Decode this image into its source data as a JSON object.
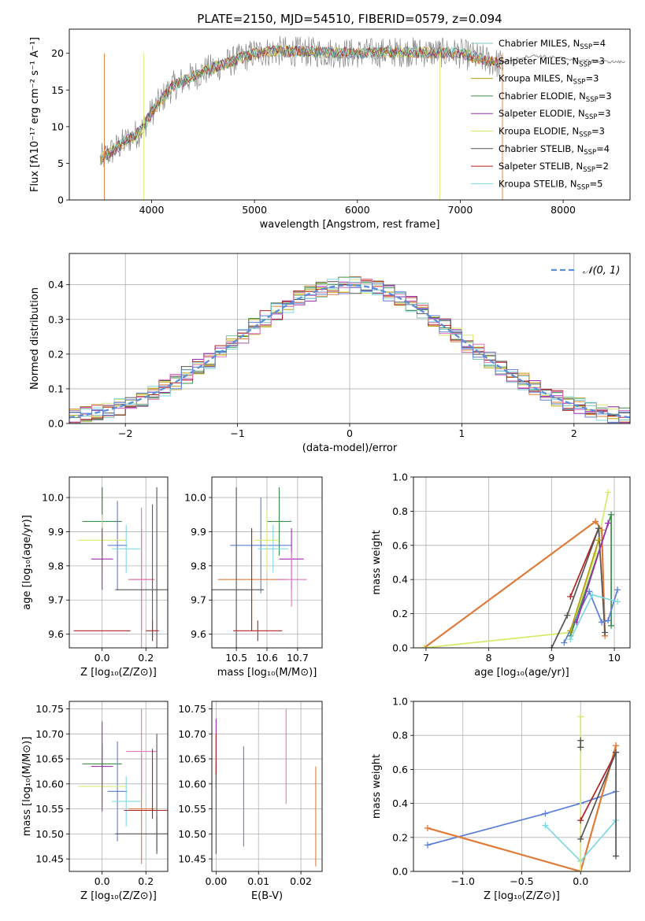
{
  "figure_title": "PLATE=2150, MJD=54510, FIBERID=0579, z=0.094",
  "colors": {
    "chabrier_miles": "#7fc6bc",
    "salpeter_miles": "#e07b39",
    "kroupa_miles": "#b8a00c",
    "chabrier_elodie": "#3e8f4c",
    "salpeter_elodie": "#9b2fae",
    "kroupa_elodie": "#d9e86a",
    "chabrier_stelib": "#555555",
    "salpeter_stelib": "#b22222",
    "kroupa_stelib": "#7fd8e0",
    "blue_model": "#5b7fd6",
    "pink_model": "#e377c2",
    "normal_curve": "#5a8fd8",
    "data": "#888888"
  },
  "chart_data": [
    {
      "id": "spectrum",
      "type": "line",
      "xlabel": "wavelength [Angstrom, rest frame]",
      "ylabel": "Flux [fλ10⁻¹⁷ erg cm⁻² s⁻¹ A⁻¹]",
      "xlim": [
        3200,
        8650
      ],
      "ylim": [
        0,
        23.3
      ],
      "xticks": [
        "4000",
        "5000",
        "6000",
        "7000",
        "8000"
      ],
      "yticks": [
        "0",
        "5",
        "10",
        "15",
        "20"
      ],
      "legend_position": "top-right",
      "continuum": {
        "x": [
          3500,
          3700,
          3900,
          4000,
          4200,
          4500,
          4800,
          5000,
          5200,
          5500,
          6000,
          6500,
          7000,
          7400
        ],
        "y": [
          5.5,
          7.5,
          9.5,
          12.0,
          15.5,
          17.5,
          19.0,
          20.0,
          20.3,
          20.2,
          20.0,
          20.2,
          20.0,
          18.5
        ]
      },
      "extended_model": {
        "x": [
          7400,
          7700,
          8000,
          8300,
          8600
        ],
        "y": [
          18.8,
          19.7,
          19.3,
          18.9,
          18.8
        ]
      },
      "series": [
        {
          "label": "Chabrier MILES, N",
          "sub": "SSP",
          "suffix": "=4"
        },
        {
          "label": "Salpeter MILES, N",
          "sub": "SSP",
          "suffix": "=3"
        },
        {
          "label": "Kroupa MILES, N",
          "sub": "SSP",
          "suffix": "=3"
        },
        {
          "label": "Chabrier ELODIE, N",
          "sub": "SSP",
          "suffix": "=3"
        },
        {
          "label": "Salpeter ELODIE, N",
          "sub": "SSP",
          "suffix": "=3"
        },
        {
          "label": "Kroupa ELODIE, N",
          "sub": "SSP",
          "suffix": "=3"
        },
        {
          "label": "Chabrier STELIB, N",
          "sub": "SSP",
          "suffix": "=4"
        },
        {
          "label": "Salpeter STELIB, N",
          "sub": "SSP",
          "suffix": "=2"
        },
        {
          "label": "Kroupa STELIB, N",
          "sub": "SSP",
          "suffix": "=5"
        }
      ]
    },
    {
      "id": "residuals",
      "type": "line",
      "xlabel": "(data-model)/error",
      "ylabel": "Normed distribution",
      "xlim": [
        -2.5,
        2.5
      ],
      "ylim": [
        0,
        0.49
      ],
      "xticks": [
        "−2",
        "−1",
        "0",
        "1",
        "2"
      ],
      "yticks": [
        "0.0",
        "0.1",
        "0.2",
        "0.3",
        "0.4"
      ],
      "grid": true,
      "legend": "𝒩(0, 1)",
      "legend_position": "top-right",
      "bin_width": 0.1,
      "bin_start": -2.5
    },
    {
      "id": "age_vs_Z",
      "type": "scatter",
      "xlabel": "Z [log₁₀(Z/Z⊙)]",
      "ylabel": "age  [log₁₀(age/yr)]",
      "xlim": [
        -0.15,
        0.3
      ],
      "ylim": [
        9.56,
        10.06
      ],
      "xticks": [
        "0.0",
        "0.2"
      ],
      "yticks": [
        "9.6",
        "9.7",
        "9.8",
        "9.9",
        "10.0"
      ],
      "grid": true,
      "points": [
        {
          "x": 0.0,
          "y": 9.93,
          "xerr": 0.09,
          "yerr": 0.1,
          "c": "chabrier_elodie"
        },
        {
          "x": 0.07,
          "y": 9.86,
          "xerr": 0.045,
          "yerr": 0.13,
          "c": "blue_model"
        },
        {
          "x": 0.11,
          "y": 9.85,
          "xerr": 0.065,
          "yerr": 0.07,
          "c": "kroupa_stelib"
        },
        {
          "x": 0.0,
          "y": 9.875,
          "xerr": 0.11,
          "yerr": 0.09,
          "c": "kroupa_elodie"
        },
        {
          "x": 0.0,
          "y": 9.82,
          "xerr": 0.05,
          "yerr": 0.09,
          "c": "salpeter_elodie"
        },
        {
          "x": 0.18,
          "y": 9.76,
          "xerr": 0.06,
          "yerr": 0.15,
          "c": "salpeter_miles"
        },
        {
          "x": 0.18,
          "y": 9.76,
          "xerr": 0.05,
          "yerr": 0.21,
          "c": "pink_model"
        },
        {
          "x": 0.25,
          "y": 9.73,
          "xerr": 0.19,
          "yerr": 0.3,
          "c": "chabrier_stelib"
        },
        {
          "x": 0.23,
          "y": 9.78,
          "xerr": 0.0,
          "yerr": 0.2,
          "c": "salpeter_elodie"
        },
        {
          "x": 0.0,
          "y": 9.99,
          "xerr": 0.0,
          "yerr": 0.04,
          "c": "chabrier_elodie"
        },
        {
          "x": 0.0,
          "y": 9.61,
          "xerr": 0.13,
          "yerr": 0.0,
          "c": "salpeter_stelib"
        },
        {
          "x": 0.23,
          "y": 9.61,
          "xerr": 0.03,
          "yerr": 0.03,
          "c": "salpeter_stelib"
        }
      ]
    },
    {
      "id": "age_vs_mass",
      "type": "scatter",
      "xlabel": "mass [log₁₀(M/M⊙)]",
      "xlim": [
        10.42,
        10.78
      ],
      "ylim": [
        9.56,
        10.06
      ],
      "xticks": [
        "10.5",
        "10.6",
        "10.7"
      ],
      "yticks": [
        "9.6",
        "9.7",
        "9.8",
        "9.9",
        "10.0"
      ],
      "grid": true,
      "points": [
        {
          "x": 10.64,
          "y": 9.93,
          "xerr": 0.04,
          "yerr": 0.1,
          "c": "chabrier_elodie"
        },
        {
          "x": 10.58,
          "y": 9.86,
          "xerr": 0.1,
          "yerr": 0.14,
          "c": "blue_model"
        },
        {
          "x": 10.62,
          "y": 9.85,
          "xerr": 0.05,
          "yerr": 0.07,
          "c": "kroupa_stelib"
        },
        {
          "x": 10.6,
          "y": 9.875,
          "xerr": 0.04,
          "yerr": 0.09,
          "c": "kroupa_elodie"
        },
        {
          "x": 10.68,
          "y": 9.82,
          "xerr": 0.04,
          "yerr": 0.09,
          "c": "salpeter_elodie"
        },
        {
          "x": 10.55,
          "y": 9.76,
          "xerr": 0.11,
          "yerr": 0.15,
          "c": "salpeter_miles"
        },
        {
          "x": 10.68,
          "y": 9.76,
          "xerr": 0.05,
          "yerr": 0.08,
          "c": "pink_model"
        },
        {
          "x": 10.5,
          "y": 9.73,
          "xerr": 0.09,
          "yerr": 0.3,
          "c": "chabrier_stelib"
        },
        {
          "x": 10.57,
          "y": 9.61,
          "xerr": 0.08,
          "yerr": 0.03,
          "c": "salpeter_stelib"
        },
        {
          "x": 10.55,
          "y": 9.76,
          "xerr": 0.0,
          "yerr": 0.15,
          "c": "salpeter_stelib"
        }
      ]
    },
    {
      "id": "weight_vs_age",
      "type": "line",
      "xlabel": "age  [log₁₀(age/yr)]",
      "ylabel": "mass weight",
      "xlim": [
        6.8,
        10.25
      ],
      "ylim": [
        0,
        1.0
      ],
      "xticks": [
        "7",
        "8",
        "9",
        "10"
      ],
      "yticks": [
        "0.0",
        "0.2",
        "0.4",
        "0.6",
        "0.8",
        "1.0"
      ],
      "grid": true,
      "series": [
        {
          "c": "salpeter_miles",
          "x": [
            6.97,
            9.7,
            9.8,
            9.85
          ],
          "y": [
            0.0,
            0.74,
            0.69,
            0.07
          ]
        },
        {
          "c": "kroupa_elodie",
          "x": [
            6.97,
            9.3,
            9.7,
            9.9
          ],
          "y": [
            0.0,
            0.09,
            0.55,
            0.91
          ]
        },
        {
          "c": "salpeter_stelib",
          "x": [
            9.3,
            9.75
          ],
          "y": [
            0.3,
            0.7
          ]
        },
        {
          "c": "chabrier_stelib",
          "x": [
            9.0,
            9.25,
            9.75,
            9.85
          ],
          "y": [
            0.0,
            0.19,
            0.7,
            0.09
          ]
        },
        {
          "c": "chabrier_elodie",
          "x": [
            9.3,
            9.95,
            9.95
          ],
          "y": [
            0.07,
            0.78,
            0.13
          ]
        },
        {
          "c": "blue_model",
          "x": [
            9.2,
            9.6,
            9.8,
            9.9,
            10.05
          ],
          "y": [
            0.03,
            0.33,
            0.15,
            0.16,
            0.34
          ]
        },
        {
          "c": "salpeter_elodie",
          "x": [
            9.4,
            9.9
          ],
          "y": [
            0.15,
            0.73
          ]
        },
        {
          "c": "kroupa_stelib",
          "x": [
            9.3,
            9.65,
            10.05
          ],
          "y": [
            0.05,
            0.31,
            0.27
          ]
        },
        {
          "c": "kroupa_miles",
          "x": [
            9.3,
            9.75
          ],
          "y": [
            0.1,
            0.63
          ]
        }
      ]
    },
    {
      "id": "mass_vs_Z",
      "type": "scatter",
      "xlabel": "Z [log₁₀(Z/Z⊙)]",
      "ylabel": "mass [log₁₀(M/M⊙)]",
      "xlim": [
        -0.15,
        0.3
      ],
      "ylim": [
        10.425,
        10.765
      ],
      "xticks": [
        "0.0",
        "0.2"
      ],
      "yticks": [
        "10.45",
        "10.50",
        "10.55",
        "10.60",
        "10.65",
        "10.70",
        "10.75"
      ],
      "grid": true,
      "points": [
        {
          "x": 0.0,
          "y": 10.64,
          "xerr": 0.09,
          "yerr": 0.04,
          "c": "chabrier_elodie"
        },
        {
          "x": 0.07,
          "y": 10.585,
          "xerr": 0.045,
          "yerr": 0.1,
          "c": "blue_model"
        },
        {
          "x": 0.11,
          "y": 10.565,
          "xerr": 0.065,
          "yerr": 0.05,
          "c": "kroupa_stelib"
        },
        {
          "x": 0.0,
          "y": 10.595,
          "xerr": 0.11,
          "yerr": 0.04,
          "c": "kroupa_elodie"
        },
        {
          "x": 0.0,
          "y": 10.635,
          "xerr": 0.05,
          "yerr": 0.09,
          "c": "salpeter_elodie"
        },
        {
          "x": 0.18,
          "y": 10.55,
          "xerr": 0.06,
          "yerr": 0.11,
          "c": "salpeter_miles"
        },
        {
          "x": 0.18,
          "y": 10.665,
          "xerr": 0.07,
          "yerr": 0.085,
          "c": "pink_model"
        },
        {
          "x": 0.25,
          "y": 10.5,
          "xerr": 0.19,
          "yerr": 0.035,
          "c": "chabrier_stelib"
        },
        {
          "x": 0.23,
          "y": 10.547,
          "xerr": 0.13,
          "yerr": 0.0,
          "c": "salpeter_stelib"
        },
        {
          "x": 0.23,
          "y": 10.6,
          "xerr": 0.0,
          "yerr": 0.07,
          "c": "salpeter_stelib"
        },
        {
          "x": 0.25,
          "y": 10.58,
          "xerr": 0.0,
          "yerr": 0.12,
          "c": "chabrier_stelib"
        }
      ]
    },
    {
      "id": "mass_vs_ebv",
      "type": "scatter",
      "xlabel": "E(B-V)",
      "xlim": [
        -0.001,
        0.025
      ],
      "ylim": [
        10.425,
        10.765
      ],
      "xticks": [
        "0.00",
        "0.01",
        "0.02"
      ],
      "yticks": [
        "10.45",
        "10.50",
        "10.55",
        "10.60",
        "10.65",
        "10.70",
        "10.75"
      ],
      "grid": true,
      "points": [
        {
          "x": 0.0,
          "y": 10.66,
          "xerr": 0.0,
          "yerr": 0.07,
          "c": "salpeter_elodie"
        },
        {
          "x": 0.0,
          "y": 10.55,
          "xerr": 0.0,
          "yerr": 0.09,
          "c": "chabrier_stelib"
        },
        {
          "x": 0.0,
          "y": 10.66,
          "xerr": 0.0,
          "yerr": 0.04,
          "c": "salpeter_stelib"
        },
        {
          "x": 0.0065,
          "y": 10.575,
          "xerr": 0.0,
          "yerr": 0.1,
          "c": "blue_model"
        },
        {
          "x": 0.0165,
          "y": 10.655,
          "xerr": 0.0,
          "yerr": 0.095,
          "c": "pink_model"
        },
        {
          "x": 0.0235,
          "y": 10.535,
          "xerr": 0.0,
          "yerr": 0.1,
          "c": "salpeter_miles"
        }
      ]
    },
    {
      "id": "weight_vs_Z",
      "type": "line",
      "xlabel": "Z [log₁₀(Z/Z⊙)]",
      "ylabel": "mass weight",
      "xlim": [
        -1.42,
        0.42
      ],
      "ylim": [
        0,
        1.0
      ],
      "xticks": [
        "−1.0",
        "−0.5",
        "0.0"
      ],
      "yticks": [
        "0.0",
        "0.2",
        "0.4",
        "0.6",
        "0.8",
        "1.0"
      ],
      "grid": true,
      "series": [
        {
          "c": "blue_model",
          "x": [
            -1.3,
            -0.3,
            0.0,
            0.3
          ],
          "y": [
            0.155,
            0.34,
            0.4,
            0.47
          ]
        },
        {
          "c": "salpeter_miles",
          "x": [
            -1.3,
            0.0,
            0.3,
            0.3
          ],
          "y": [
            0.255,
            0.0,
            0.74,
            0.74
          ]
        },
        {
          "c": "kroupa_stelib",
          "x": [
            -0.3,
            0.0,
            0.3
          ],
          "y": [
            0.27,
            0.06,
            0.3
          ]
        },
        {
          "c": "kroupa_elodie",
          "x": [
            0.0,
            0.0
          ],
          "y": [
            0.0,
            0.91
          ]
        },
        {
          "c": "salpeter_stelib",
          "x": [
            0.0,
            0.3
          ],
          "y": [
            0.3,
            0.7
          ]
        },
        {
          "c": "chabrier_stelib",
          "x": [
            0.0,
            0.3,
            0.3
          ],
          "y": [
            0.19,
            0.7,
            0.09
          ]
        },
        {
          "c": "chabrier_stelib",
          "x": [
            0.0,
            0.0
          ],
          "y": [
            0.73,
            0.77
          ]
        }
      ]
    }
  ]
}
